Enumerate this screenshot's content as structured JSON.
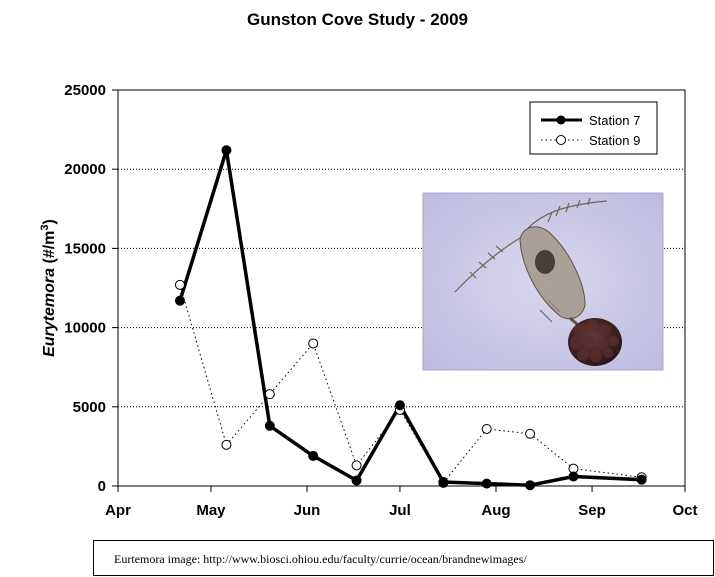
{
  "chart_data": {
    "type": "line",
    "title": "Gunston Cove Study - 2009",
    "ylabel_main": "Eurytemora",
    "ylabel_unit_pre": " (#/m",
    "ylabel_unit_sup": "3",
    "ylabel_unit_post": ")",
    "ylim": [
      0,
      25000
    ],
    "yticks": [
      0,
      5000,
      10000,
      15000,
      20000,
      25000
    ],
    "xticks": [
      "Apr",
      "May",
      "Jun",
      "Jul",
      "Aug",
      "Sep",
      "Oct"
    ],
    "xlim": [
      "2009-04-01",
      "2009-10-01"
    ],
    "grid": true,
    "legend_position": "top-right",
    "series": [
      {
        "name": "Station 7",
        "style": "solid-filled",
        "color": "#000000",
        "x": [
          "2009-04-21",
          "2009-05-06",
          "2009-05-20",
          "2009-06-03",
          "2009-06-17",
          "2009-07-01",
          "2009-07-15",
          "2009-07-29",
          "2009-08-12",
          "2009-08-26",
          "2009-09-17"
        ],
        "y": [
          11700,
          21200,
          3800,
          1900,
          350,
          5100,
          250,
          150,
          50,
          600,
          400
        ]
      },
      {
        "name": "Station 9",
        "style": "dotted-open",
        "color": "#000000",
        "x": [
          "2009-04-21",
          "2009-05-06",
          "2009-05-20",
          "2009-06-03",
          "2009-06-17",
          "2009-07-01",
          "2009-07-15",
          "2009-07-29",
          "2009-08-12",
          "2009-08-26",
          "2009-09-17"
        ],
        "y": [
          12700,
          2600,
          5800,
          9000,
          1300,
          4800,
          200,
          3600,
          3300,
          1100,
          550
        ]
      }
    ]
  },
  "image_credit": "Eurtemora image: http://www.biosci.ohiou.edu/faculty/currie/ocean/brandnewimages/"
}
